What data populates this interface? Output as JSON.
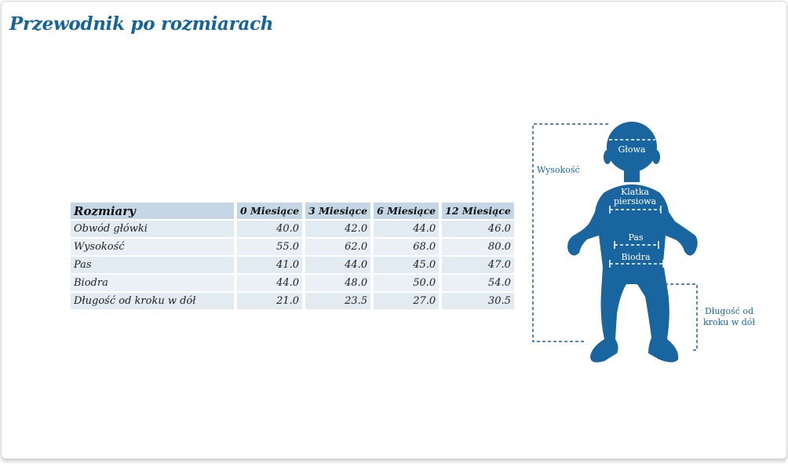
{
  "title": "Przewodnik po rozmiarach",
  "table": {
    "headers": [
      "Rozmiary",
      "0 Miesiące",
      "3 Miesiące",
      "6 Miesiące",
      "12 Miesiące"
    ],
    "rows": [
      [
        "Obwód główki",
        "40.0",
        "42.0",
        "44.0",
        "46.0"
      ],
      [
        "Wysokość",
        "55.0",
        "62.0",
        "68.0",
        "80.0"
      ],
      [
        "Pas",
        "41.0",
        "44.0",
        "45.0",
        "47.0"
      ],
      [
        "Biodra",
        "44.0",
        "48.0",
        "50.0",
        "54.0"
      ],
      [
        "Długość od kroku w dół",
        "21.0",
        "23.5",
        "27.0",
        "30.5"
      ]
    ]
  },
  "figure": {
    "labels": {
      "head": "Głowa",
      "chest_1": "Klatka",
      "chest_2": "piersiowa",
      "waist": "Pas",
      "hips": "Biodra",
      "height": "Wysokość",
      "inseam_1": "Długość od",
      "inseam_2": "kroku w dół"
    },
    "colors": {
      "silhouette": "#1865a0",
      "title": "#17649a"
    }
  }
}
